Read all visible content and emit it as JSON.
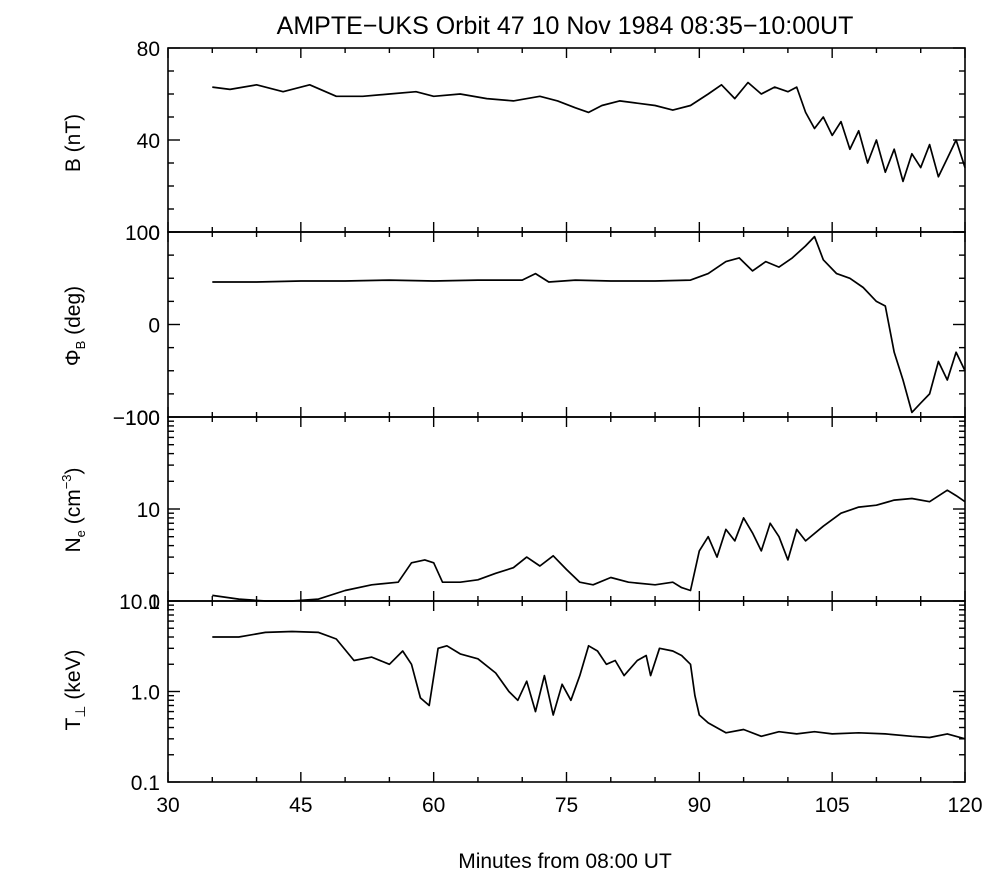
{
  "chart_data": [
    {
      "type": "line",
      "panel": "B",
      "title": "AMPTE−UKS   Orbit 47   10 Nov 1984   08:35−10:00UT",
      "ylabel": "B (nT)",
      "xlabel": "Minutes from 08:00 UT",
      "xlim": [
        30,
        120
      ],
      "ylim": [
        0,
        80
      ],
      "yscale": "linear",
      "x_ticks": [
        "30",
        "45",
        "60",
        "75",
        "90",
        "105",
        "120"
      ],
      "y_ticks": [
        "0",
        "40",
        "80"
      ],
      "x": [
        35,
        37,
        40,
        43,
        46,
        49,
        52,
        55,
        58,
        60,
        63,
        66,
        69,
        72,
        74,
        76,
        77.5,
        79,
        81,
        83,
        85,
        87,
        89,
        91,
        92.5,
        94,
        95.5,
        97,
        98.5,
        100,
        101,
        102,
        103,
        104,
        105,
        106,
        107,
        108,
        109,
        110,
        111,
        112,
        113,
        114,
        115,
        116,
        117,
        118,
        119,
        120
      ],
      "values": [
        63,
        62,
        64,
        61,
        64,
        59,
        59,
        60,
        61,
        59,
        60,
        58,
        57,
        59,
        57,
        54,
        52,
        55,
        57,
        56,
        55,
        53,
        55,
        60,
        64,
        58,
        65,
        60,
        63,
        61,
        63,
        52,
        45,
        50,
        42,
        48,
        36,
        44,
        30,
        40,
        26,
        36,
        22,
        34,
        28,
        38,
        24,
        32,
        40,
        28
      ]
    },
    {
      "type": "line",
      "panel": "PhiB",
      "ylabel": "ΦB (deg)",
      "xlim": [
        30,
        120
      ],
      "ylim": [
        -100,
        100
      ],
      "yscale": "linear",
      "y_ticks": [
        "−100",
        "0",
        "100"
      ],
      "x": [
        35,
        40,
        45,
        50,
        55,
        60,
        65,
        70,
        71.5,
        73,
        76,
        80,
        85,
        89,
        91,
        93,
        94.5,
        96,
        97.5,
        99,
        100.5,
        102,
        103,
        104,
        105.5,
        107,
        108.5,
        110,
        111,
        112,
        113,
        114,
        115,
        116,
        117,
        118,
        119,
        120
      ],
      "values": [
        46,
        46,
        47,
        47,
        48,
        47,
        48,
        48,
        55,
        46,
        48,
        47,
        47,
        48,
        55,
        68,
        72,
        58,
        68,
        62,
        72,
        85,
        95,
        70,
        55,
        50,
        40,
        25,
        20,
        -30,
        -60,
        -95,
        -85,
        -75,
        -40,
        -60,
        -30,
        -50
      ]
    },
    {
      "type": "line",
      "panel": "Ne",
      "ylabel": "Ne (cm⁻³)",
      "xlim": [
        30,
        120
      ],
      "ylim": [
        1,
        100
      ],
      "yscale": "log",
      "y_ticks": [
        "1",
        "10",
        "100"
      ],
      "x": [
        35,
        38,
        41,
        44,
        47,
        50,
        53,
        56,
        57.5,
        59,
        60,
        61,
        63,
        65,
        67,
        69,
        70.5,
        72,
        73.5,
        75,
        76.5,
        78,
        80,
        82,
        85,
        87,
        88,
        89,
        90,
        91,
        92,
        93,
        94,
        95,
        96,
        97,
        98,
        99,
        100,
        101,
        102,
        104,
        106,
        108,
        110,
        112,
        114,
        116,
        118,
        119,
        120
      ],
      "values": [
        1.15,
        1.05,
        1.0,
        1.0,
        1.05,
        1.3,
        1.5,
        1.6,
        2.6,
        2.8,
        2.6,
        1.6,
        1.6,
        1.7,
        2.0,
        2.3,
        3.0,
        2.4,
        3.1,
        2.2,
        1.6,
        1.5,
        1.8,
        1.6,
        1.5,
        1.6,
        1.4,
        1.3,
        3.5,
        5.0,
        3.0,
        6.0,
        4.5,
        8.0,
        5.5,
        3.5,
        7.0,
        5.0,
        2.8,
        6.0,
        4.5,
        6.5,
        9.0,
        10.5,
        11.0,
        12.5,
        13.0,
        12.0,
        16.0,
        14.0,
        12.0
      ]
    },
    {
      "type": "line",
      "panel": "Tperp",
      "ylabel": "T⊥ (keV)",
      "xlim": [
        30,
        120
      ],
      "ylim": [
        0.1,
        10
      ],
      "yscale": "log",
      "y_ticks": [
        "0.1",
        "1.0",
        "10.0"
      ],
      "x": [
        35,
        38,
        41,
        44,
        47,
        49,
        51,
        53,
        55,
        56.5,
        57.5,
        58.5,
        59.5,
        60.5,
        61.5,
        63,
        65,
        67,
        68.5,
        69.5,
        70.5,
        71.5,
        72.5,
        73.5,
        74.5,
        75.5,
        76.5,
        77.5,
        78.5,
        79.5,
        80.5,
        81.5,
        83,
        84,
        84.5,
        85.5,
        87,
        88,
        89,
        89.5,
        90,
        91,
        93,
        95,
        97,
        99,
        101,
        103,
        105,
        108,
        111,
        114,
        116,
        118,
        120
      ],
      "values": [
        4.0,
        4.0,
        4.5,
        4.6,
        4.5,
        3.8,
        2.2,
        2.4,
        2.0,
        2.8,
        2.0,
        0.85,
        0.7,
        3.0,
        3.2,
        2.6,
        2.3,
        1.6,
        1.0,
        0.8,
        1.3,
        0.6,
        1.5,
        0.55,
        1.2,
        0.8,
        1.5,
        3.2,
        2.8,
        2.0,
        2.2,
        1.5,
        2.2,
        2.5,
        1.5,
        3.0,
        2.8,
        2.5,
        2.0,
        0.9,
        0.55,
        0.45,
        0.35,
        0.38,
        0.32,
        0.36,
        0.34,
        0.36,
        0.34,
        0.35,
        0.34,
        0.32,
        0.31,
        0.34,
        0.3
      ]
    }
  ]
}
